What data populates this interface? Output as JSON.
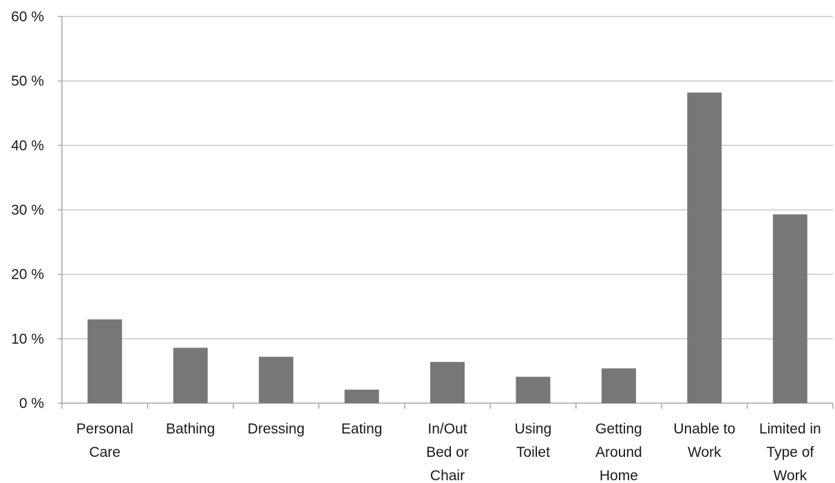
{
  "chart_data": {
    "type": "bar",
    "categories": [
      [
        "Personal",
        "Care"
      ],
      [
        "Bathing"
      ],
      [
        "Dressing"
      ],
      [
        "Eating"
      ],
      [
        "In/Out",
        "Bed or",
        "Chair"
      ],
      [
        "Using",
        "Toilet"
      ],
      [
        "Getting",
        "Around",
        "Home"
      ],
      [
        "Unable to",
        "Work"
      ],
      [
        "Limited in",
        "Type of",
        "Work"
      ]
    ],
    "values": [
      13.0,
      8.6,
      7.2,
      2.1,
      6.4,
      4.1,
      5.4,
      48.2,
      29.3
    ],
    "ylim": [
      0,
      60
    ],
    "yticks": [
      0,
      10,
      20,
      30,
      40,
      50,
      60
    ],
    "ytick_labels": [
      "0 %",
      "10 %",
      "20 %",
      "30 %",
      "40 %",
      "50 %",
      "60 %"
    ],
    "title": "",
    "xlabel": "",
    "ylabel": "",
    "grid": true,
    "legend": "none",
    "bar_color": "#777777",
    "grid_color": "#c8c8c8",
    "axis_color": "#a6a6a6"
  }
}
